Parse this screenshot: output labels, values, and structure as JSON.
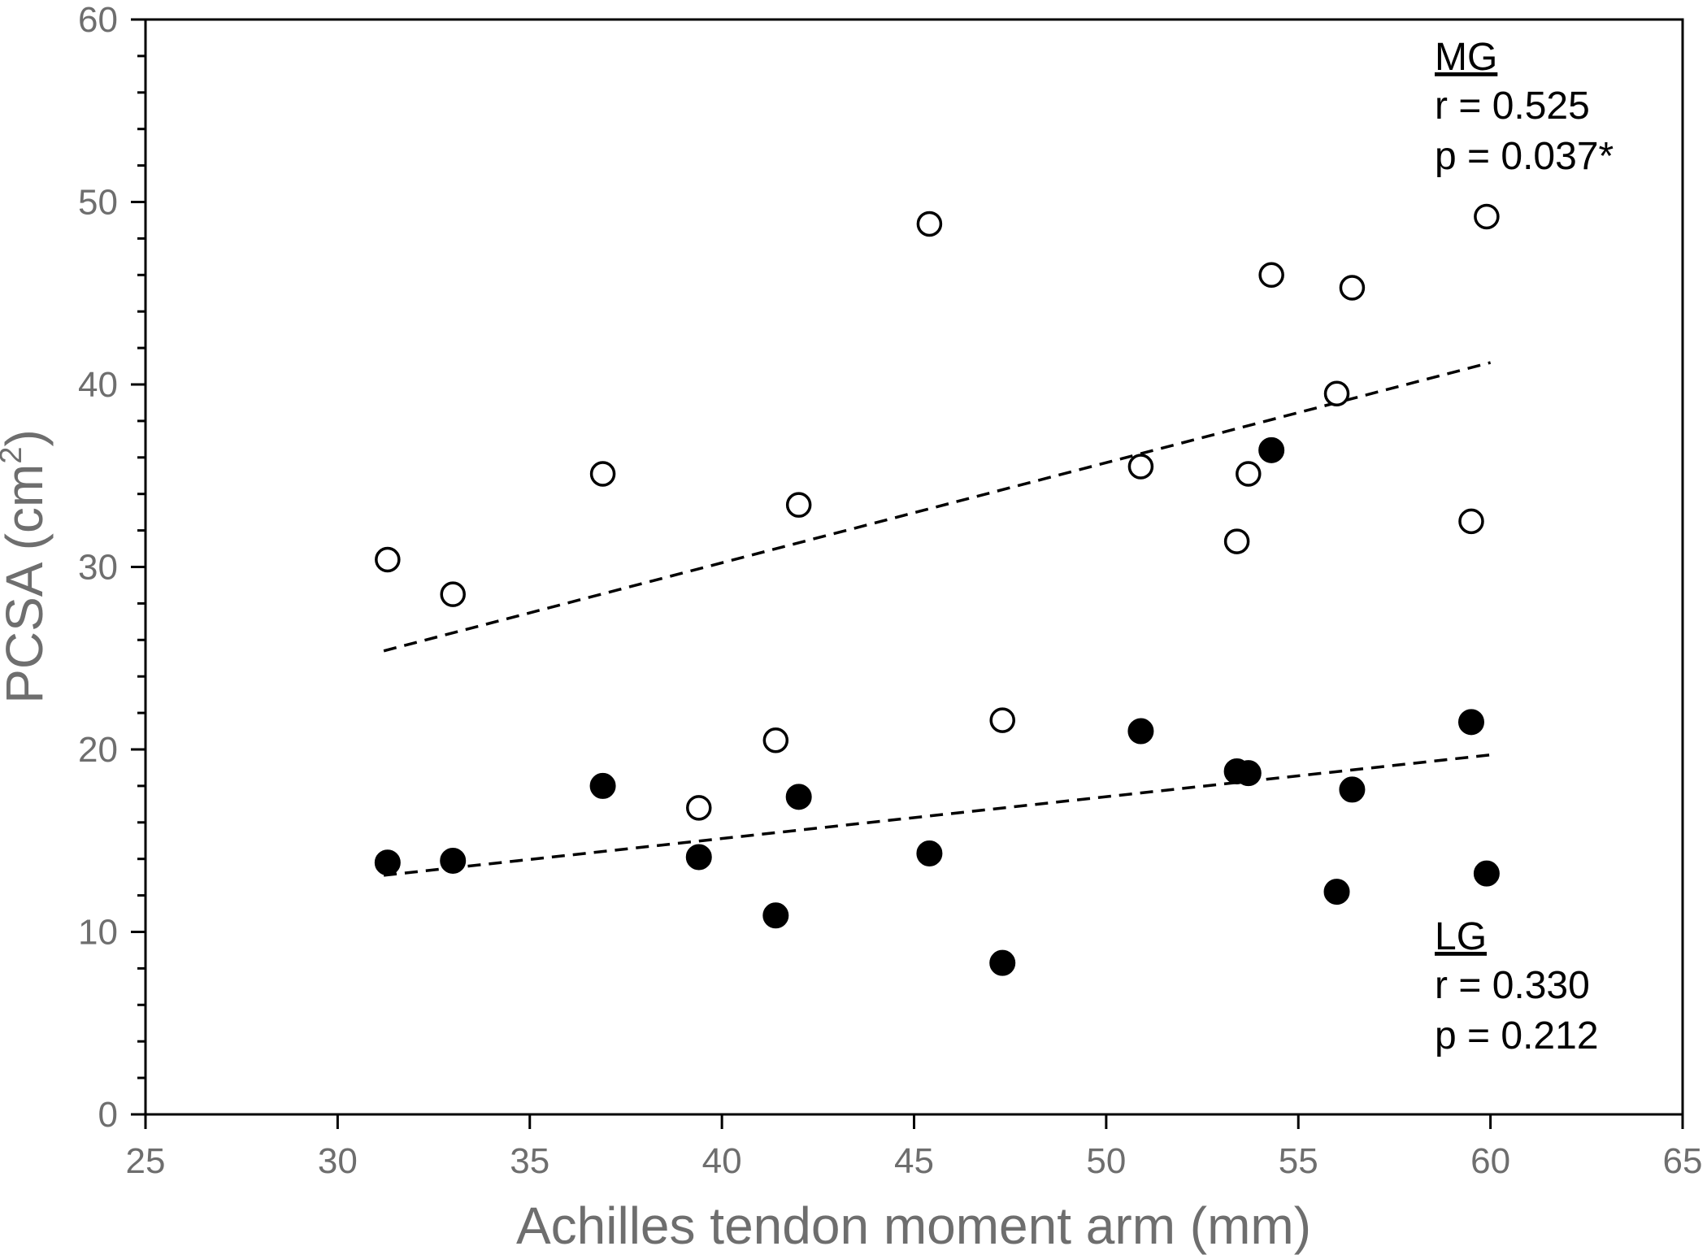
{
  "chart_data": {
    "type": "scatter",
    "xlabel": "Achilles tendon moment arm (mm)",
    "ylabel_main": "PCSA (cm",
    "ylabel_sup": "2",
    "ylabel_close": ")",
    "xlim": [
      25,
      65
    ],
    "ylim": [
      0,
      60
    ],
    "xticks": [
      25,
      30,
      35,
      40,
      45,
      50,
      55,
      60,
      65
    ],
    "yticks": [
      0,
      10,
      20,
      30,
      40,
      50,
      60
    ],
    "y_minor_step": 2,
    "grid": false,
    "colors": {
      "axis": "#000000",
      "tick_text": "#6e6e6e",
      "marker": "#000000"
    },
    "series": [
      {
        "name": "MG",
        "marker": "open-circle",
        "points": [
          [
            31.3,
            30.4
          ],
          [
            33.0,
            28.5
          ],
          [
            36.9,
            35.1
          ],
          [
            41.4,
            20.5
          ],
          [
            42.0,
            33.4
          ],
          [
            45.4,
            48.8
          ],
          [
            47.3,
            21.6
          ],
          [
            50.9,
            35.5
          ],
          [
            53.4,
            31.4
          ],
          [
            53.7,
            35.1
          ],
          [
            54.3,
            46.0
          ],
          [
            56.0,
            39.5
          ],
          [
            56.4,
            45.3
          ],
          [
            59.5,
            32.5
          ],
          [
            59.9,
            49.2
          ],
          [
            39.4,
            16.8
          ]
        ],
        "trendline": {
          "x": [
            31.2,
            60.0
          ],
          "y": [
            25.4,
            41.2
          ],
          "style": "dashed"
        },
        "annotation": {
          "label": "MG",
          "r": "r = 0.525",
          "p": "p = 0.037*",
          "position": "top-right"
        }
      },
      {
        "name": "LG",
        "marker": "filled-circle",
        "points": [
          [
            31.3,
            13.8
          ],
          [
            33.0,
            13.9
          ],
          [
            36.9,
            18.0
          ],
          [
            39.4,
            14.1
          ],
          [
            41.4,
            10.9
          ],
          [
            42.0,
            17.4
          ],
          [
            45.4,
            14.3
          ],
          [
            47.3,
            8.3
          ],
          [
            50.9,
            21.0
          ],
          [
            53.4,
            18.8
          ],
          [
            53.7,
            18.7
          ],
          [
            54.3,
            36.4
          ],
          [
            56.0,
            12.2
          ],
          [
            56.4,
            17.8
          ],
          [
            59.5,
            21.5
          ],
          [
            59.9,
            13.2
          ]
        ],
        "trendline": {
          "x": [
            31.2,
            60.0
          ],
          "y": [
            13.1,
            19.7
          ],
          "style": "dashed"
        },
        "annotation": {
          "label": "LG",
          "r": "r = 0.330",
          "p": "p = 0.212",
          "position": "bottom-right"
        }
      }
    ]
  }
}
